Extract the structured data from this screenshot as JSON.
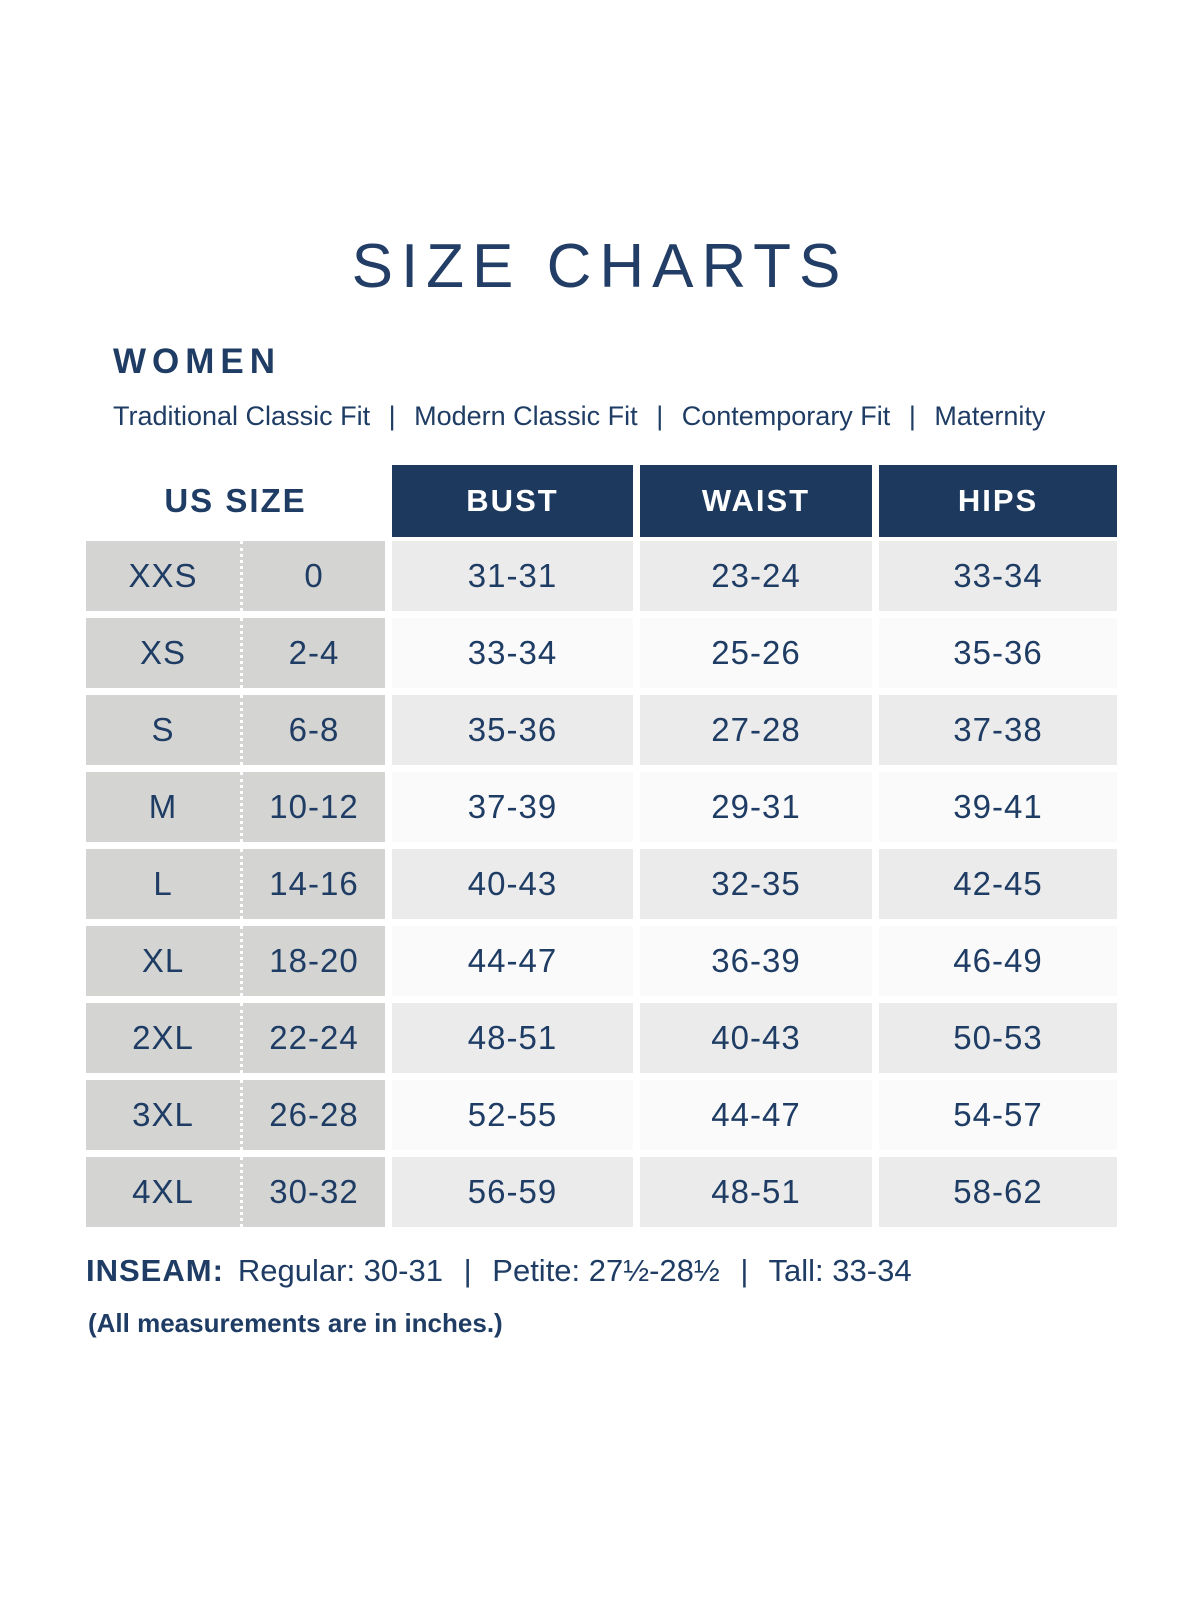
{
  "page": {
    "title": "SIZE CHARTS",
    "section": "WOMEN",
    "fits": [
      "Traditional Classic Fit",
      "Modern Classic Fit",
      "Contemporary Fit",
      "Maternity"
    ],
    "fit_separator": "|"
  },
  "table": {
    "headers": {
      "us_size": "US SIZE",
      "bust": "BUST",
      "waist": "WAIST",
      "hips": "HIPS"
    },
    "rows": [
      {
        "size": "XXS",
        "us": "0",
        "bust": "31-31",
        "waist": "23-24",
        "hips": "33-34"
      },
      {
        "size": "XS",
        "us": "2-4",
        "bust": "33-34",
        "waist": "25-26",
        "hips": "35-36"
      },
      {
        "size": "S",
        "us": "6-8",
        "bust": "35-36",
        "waist": "27-28",
        "hips": "37-38"
      },
      {
        "size": "M",
        "us": "10-12",
        "bust": "37-39",
        "waist": "29-31",
        "hips": "39-41"
      },
      {
        "size": "L",
        "us": "14-16",
        "bust": "40-43",
        "waist": "32-35",
        "hips": "42-45"
      },
      {
        "size": "XL",
        "us": "18-20",
        "bust": "44-47",
        "waist": "36-39",
        "hips": "46-49"
      },
      {
        "size": "2XL",
        "us": "22-24",
        "bust": "48-51",
        "waist": "40-43",
        "hips": "50-53"
      },
      {
        "size": "3XL",
        "us": "26-28",
        "bust": "52-55",
        "waist": "44-47",
        "hips": "54-57"
      },
      {
        "size": "4XL",
        "us": "30-32",
        "bust": "56-59",
        "waist": "48-51",
        "hips": "58-62"
      }
    ]
  },
  "inseam": {
    "label": "INSEAM:",
    "regular": "Regular: 30-31",
    "petite": "Petite: 27½-28½",
    "tall": "Tall: 33-34",
    "separator": "|"
  },
  "footnote": "(All measurements are in inches.)",
  "colors": {
    "navy_text": "#1e3c64",
    "navy_header_bg": "#1d3a5e",
    "gray_size_columns": "#d4d4d2",
    "gray_shaded_row": "#ebebeb",
    "plain_row": "#fafafa",
    "background": "#ffffff"
  }
}
